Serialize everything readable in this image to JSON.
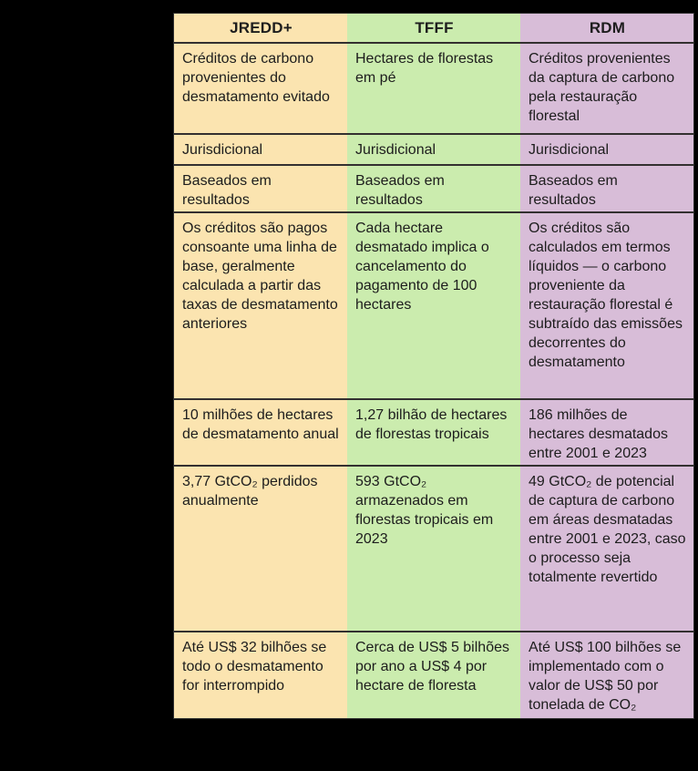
{
  "colors": {
    "background": "#000000",
    "column_jredd": "#FBE4B0",
    "column_tfff": "#CBECAE",
    "column_rdm": "#D8BDD8",
    "divider_line": "#333030",
    "text": "#1d1d1d"
  },
  "chart_data": {
    "type": "table",
    "title": "",
    "columns": [
      {
        "label": "JREDD+",
        "color": "#FBE4B0"
      },
      {
        "label": "TFFF",
        "color": "#CBECAE"
      },
      {
        "label": "RDM",
        "color": "#D8BDD8"
      }
    ],
    "rows": [
      [
        "Créditos de carbono provenientes do desmatamento evitado",
        "Hectares de florestas em pé",
        "Créditos provenientes da captura de carbono pela restauração florestal"
      ],
      [
        "Jurisdicional",
        "Jurisdicional",
        "Jurisdicional"
      ],
      [
        "Baseados em resultados",
        "Baseados em resultados",
        "Baseados em resultados"
      ],
      [
        "Os créditos são pagos consoante uma linha de base, geralmente calculada a partir das taxas de desmatamento anteriores",
        "Cada hectare desmatado implica o cancelamento do pagamento de 100 hectares",
        "Os créditos são calculados em termos líquidos — o carbono proveniente da restauração florestal é subtraído das emissões decorrentes do desmatamento"
      ],
      [
        "10 milhões de hectares de desmatamento anual",
        "1,27 bilhão de hectares de florestas tropicais",
        "186 milhões de hectares desmatados entre 2001 e 2023"
      ],
      [
        "3,77 GtCO₂ perdidos anualmente",
        "593 GtCO₂ armazenados em florestas tropicais em 2023",
        "49 GtCO₂ de potencial de captura de carbono em áreas desmatadas entre 2001 e 2023, caso o processo seja totalmente revertido"
      ],
      [
        "Até US$ 32 bilhões se todo o desmatamento for interrompido",
        "Cerca de US$ 5 bilhões por ano a US$ 4 por hectare de floresta",
        "Até US$ 100 bilhões se implementado com o valor de US$ 50 por tonelada de CO₂"
      ]
    ]
  }
}
